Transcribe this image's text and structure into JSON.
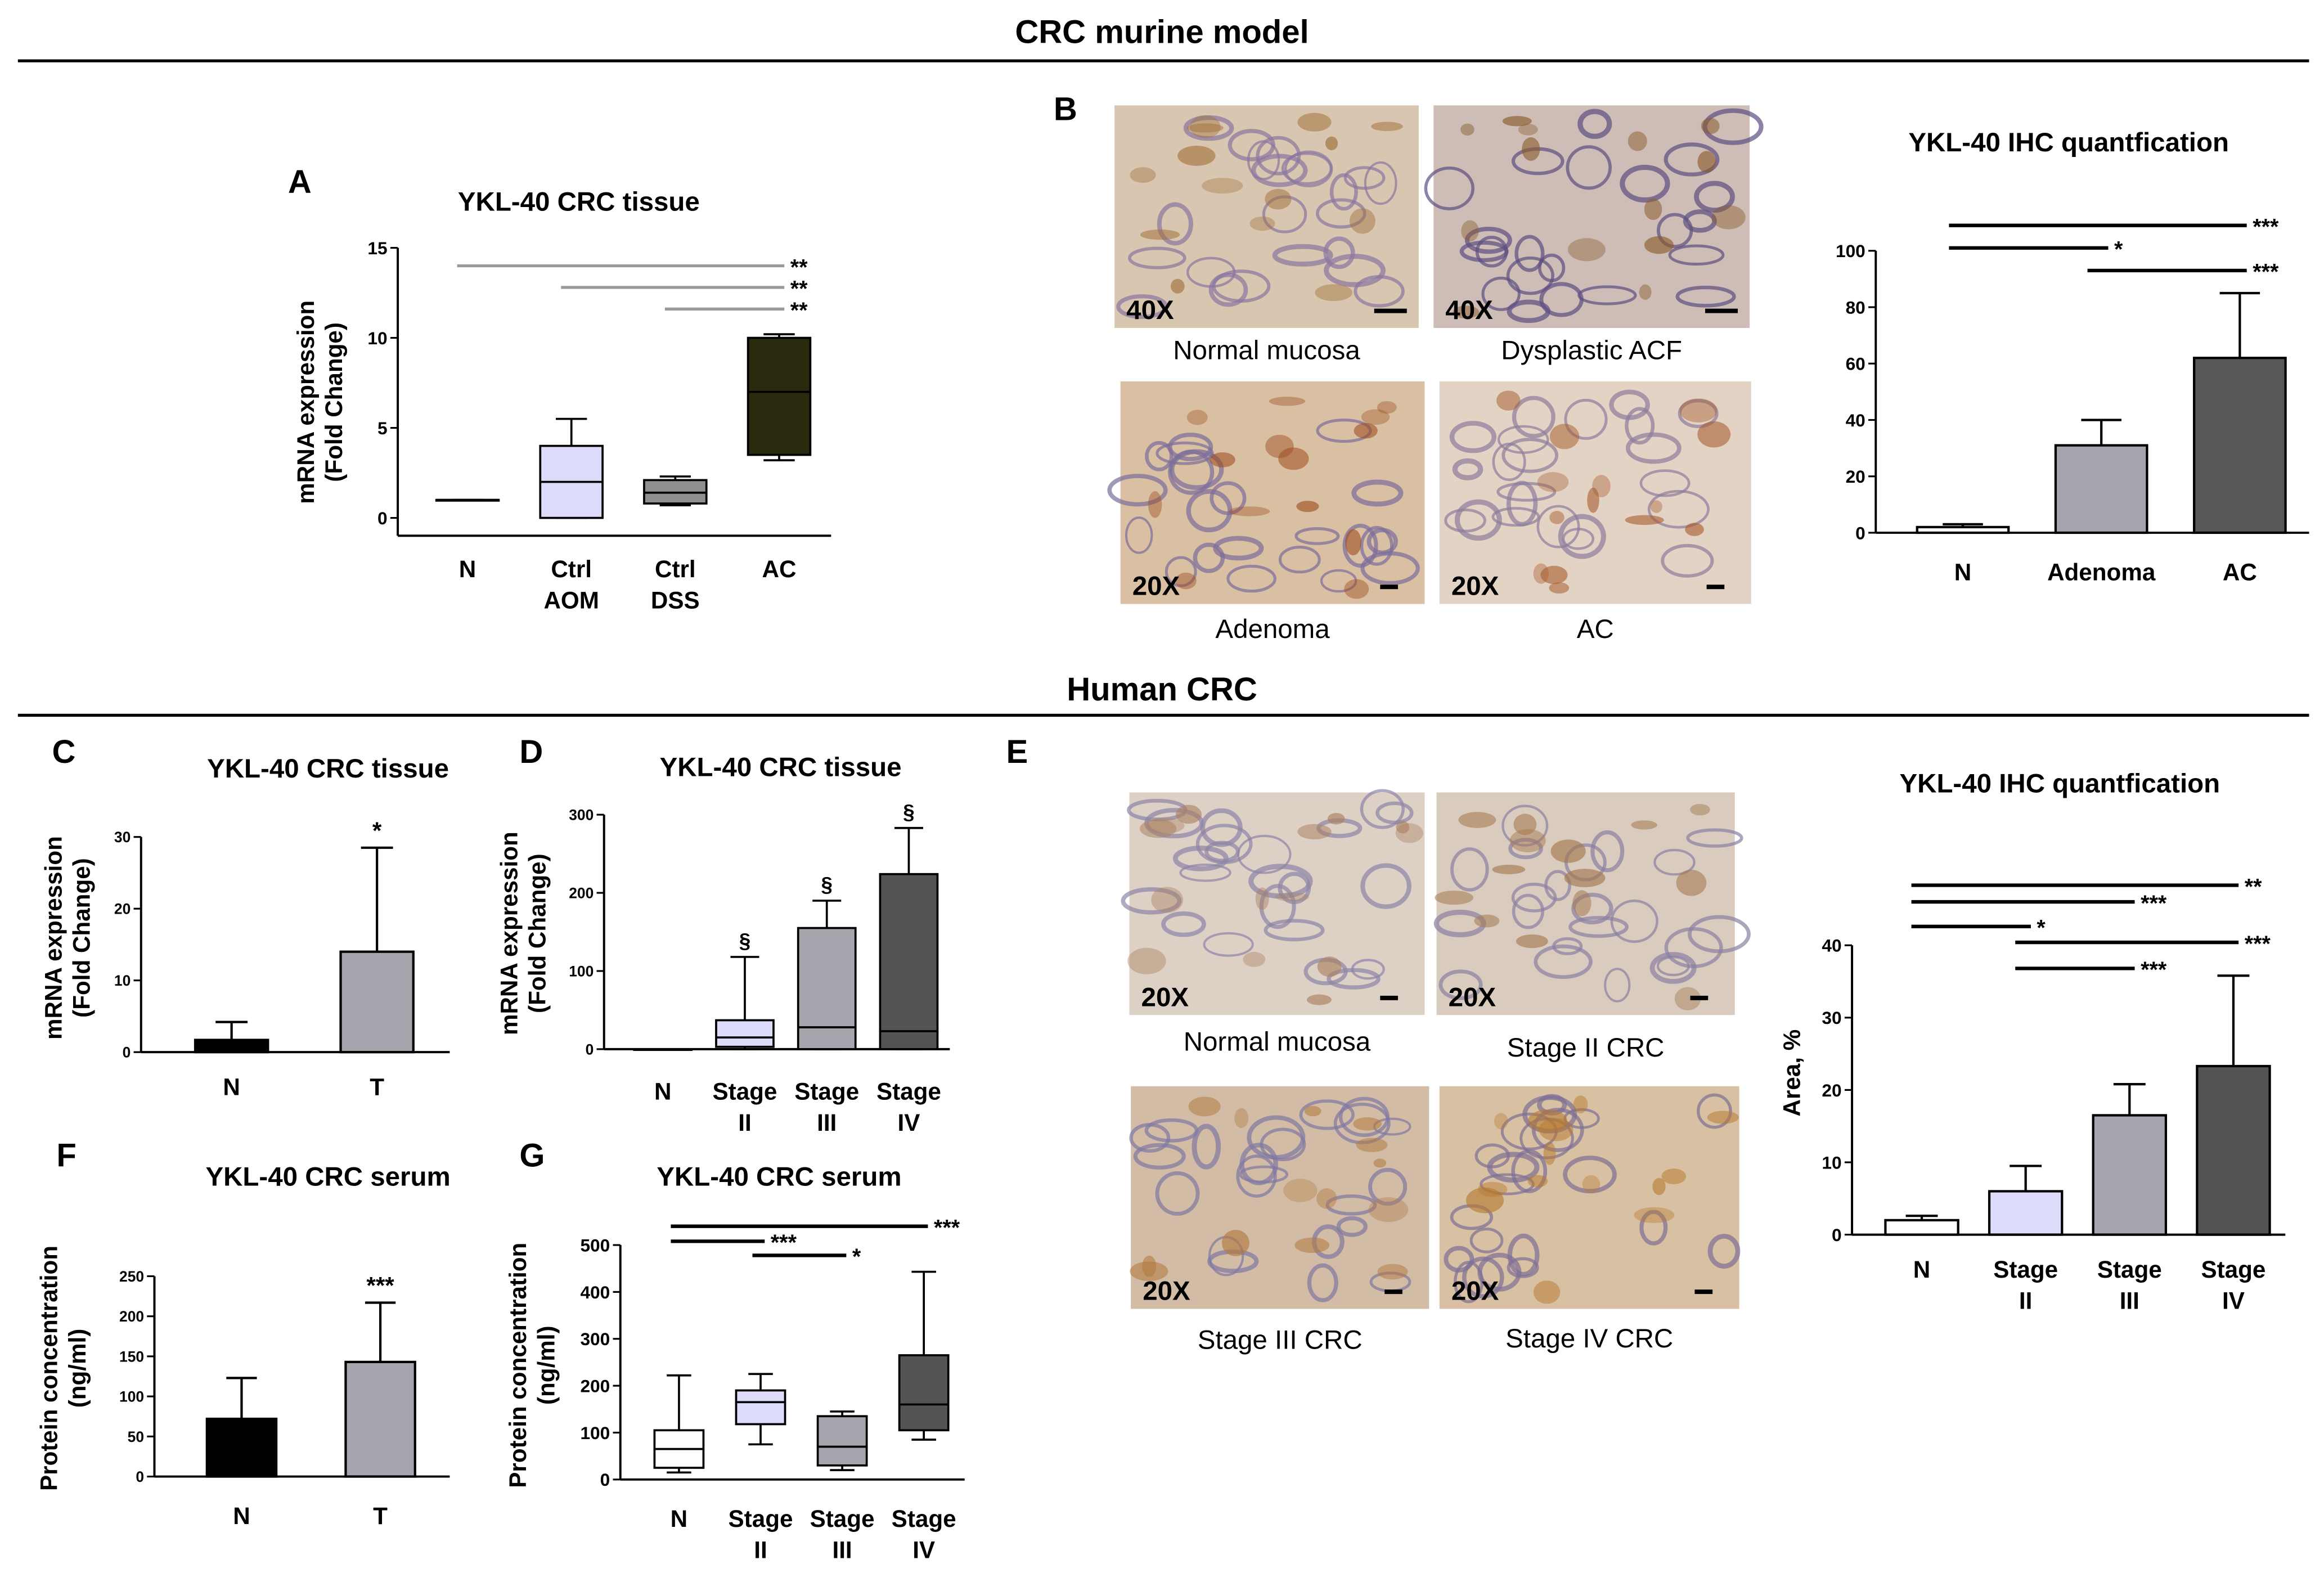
{
  "colors": {
    "N": "#ffffff",
    "ctrl_aom": "#dcdcfa",
    "ctrl_dss": "#8f8f8f",
    "ac_mouse": "#2a2a0e",
    "adenoma": "#a5a5ad",
    "ac_grey": "#575757",
    "stage2": "#dcdcfa",
    "stage3": "#a5a5ad",
    "stage4": "#545454",
    "tumor": "#a5a5ad",
    "black": "#000000"
  },
  "headers": {
    "murine": "CRC murine model",
    "human": "Human CRC"
  },
  "panel_letters": {
    "A": "A",
    "B": "B",
    "C": "C",
    "D": "D",
    "E": "E",
    "F": "F",
    "G": "G"
  },
  "micrographs": {
    "B": [
      {
        "magnification": "40X",
        "caption": "Normal mucosa",
        "tone": "#d8c6b0",
        "stain": "#8a76a0",
        "brown": "#a0703a"
      },
      {
        "magnification": "40X",
        "caption": "Dysplastic ACF",
        "tone": "#cdbdb6",
        "stain": "#5d4f80",
        "brown": "#8a5a2a"
      },
      {
        "magnification": "20X",
        "caption": "Adenoma",
        "tone": "#d9c0a3",
        "stain": "#7a6c9a",
        "brown": "#9c4a1c"
      },
      {
        "magnification": "20X",
        "caption": "AC",
        "tone": "#e3d3c4",
        "stain": "#8c7c9c",
        "brown": "#a65c2e"
      }
    ],
    "E": [
      {
        "magnification": "20X",
        "caption": "Normal mucosa",
        "tone": "#ddd1c6",
        "stain": "#8d85a7",
        "brown": "#a98060"
      },
      {
        "magnification": "20X",
        "caption": "Stage II CRC",
        "tone": "#d9cbbd",
        "stain": "#8a7fa3",
        "brown": "#a47a50"
      },
      {
        "magnification": "20X",
        "caption": "Stage III CRC",
        "tone": "#d2bca6",
        "stain": "#7f77a3",
        "brown": "#b27a40"
      },
      {
        "magnification": "20X",
        "caption": "Stage IV CRC",
        "tone": "#d8c0a2",
        "stain": "#7d6f96",
        "brown": "#b6782e"
      }
    ]
  },
  "chart_data": [
    {
      "id": "A",
      "type": "box",
      "title": "YKL-40 CRC tissue",
      "ylabel": [
        "mRNA expression",
        "(Fold Change)"
      ],
      "ylim": [
        0,
        15
      ],
      "yticks": [
        0,
        5,
        10,
        15
      ],
      "categories": [
        [
          "N"
        ],
        [
          "Ctrl",
          "AOM"
        ],
        [
          "Ctrl",
          "DSS"
        ],
        [
          "AC"
        ]
      ],
      "boxes": [
        {
          "min": 1.0,
          "q1": 1.0,
          "median": 1.0,
          "q3": 1.0,
          "max": 1.0,
          "fill": "#ffffff"
        },
        {
          "min": 0.0,
          "q1": 0.0,
          "median": 2.0,
          "q3": 4.0,
          "max": 5.5,
          "fill": "#dcdcfa"
        },
        {
          "min": 0.7,
          "q1": 0.8,
          "median": 1.4,
          "q3": 2.1,
          "max": 2.3,
          "fill": "#8f8f8f"
        },
        {
          "min": 3.2,
          "q1": 3.5,
          "median": 7.0,
          "q3": 10.0,
          "max": 10.2,
          "fill": "#2a2a0e"
        }
      ],
      "brackets": [
        {
          "from": 0,
          "to": 3,
          "y": 14.0,
          "label": "**"
        },
        {
          "from": 1,
          "to": 3,
          "y": 12.8,
          "label": "**"
        },
        {
          "from": 2,
          "to": 3,
          "y": 11.6,
          "label": "**"
        }
      ]
    },
    {
      "id": "B",
      "type": "bar",
      "title": "YKL-40 IHC quantfication",
      "ylabel": [],
      "ylim": [
        0,
        100
      ],
      "yticks": [
        0,
        20,
        40,
        60,
        80,
        100
      ],
      "categories": [
        [
          "N"
        ],
        [
          "Adenoma"
        ],
        [
          "AC"
        ]
      ],
      "values": [
        2,
        31,
        62
      ],
      "errors": [
        1,
        9,
        23
      ],
      "fills": [
        "#ffffff",
        "#a5a5ad",
        "#575757"
      ],
      "brackets": [
        {
          "from": 0,
          "to": 2,
          "y": 109,
          "label": "***"
        },
        {
          "from": 0,
          "to": 1,
          "y": 101,
          "label": "*"
        },
        {
          "from": 1,
          "to": 2,
          "y": 93,
          "label": "***"
        }
      ]
    },
    {
      "id": "C",
      "type": "bar",
      "title": "YKL-40 CRC tissue",
      "ylabel": [
        "mRNA expression",
        "(Fold Change)"
      ],
      "ylim": [
        0,
        30
      ],
      "yticks": [
        0,
        10,
        20,
        30
      ],
      "categories": [
        [
          "N"
        ],
        [
          "T"
        ]
      ],
      "values": [
        1.7,
        14
      ],
      "errors": [
        2.5,
        14.5
      ],
      "fills": [
        "#000000",
        "#a5a5ad"
      ],
      "marks": [
        {
          "index": 1,
          "label": "*"
        }
      ]
    },
    {
      "id": "D",
      "type": "box",
      "title": "YKL-40 CRC tissue",
      "ylabel": [
        "mRNA expression",
        "(Fold Change)"
      ],
      "ylim": [
        0,
        300
      ],
      "yticks": [
        0,
        100,
        200,
        300
      ],
      "categories": [
        [
          "N"
        ],
        [
          "Stage",
          "II"
        ],
        [
          "Stage",
          "III"
        ],
        [
          "Stage",
          "IV"
        ]
      ],
      "boxes": [
        {
          "min": 0,
          "q1": 0,
          "median": 0,
          "q3": 0,
          "max": 0,
          "fill": "#ffffff"
        },
        {
          "min": 0,
          "q1": 3,
          "median": 15,
          "q3": 37,
          "max": 118,
          "fill": "#dcdcfa"
        },
        {
          "min": 0,
          "q1": 0,
          "median": 28,
          "q3": 155,
          "max": 190,
          "fill": "#a5a5ad"
        },
        {
          "min": 0,
          "q1": 0,
          "median": 23,
          "q3": 224,
          "max": 283,
          "fill": "#545454"
        }
      ],
      "marks": [
        {
          "index": 1,
          "label": "§"
        },
        {
          "index": 2,
          "label": "§"
        },
        {
          "index": 3,
          "label": "§"
        }
      ]
    },
    {
      "id": "E",
      "type": "bar",
      "title": "YKL-40 IHC quantfication",
      "ylabel": [
        "Area, %"
      ],
      "ylim": [
        0,
        40
      ],
      "yticks": [
        0,
        10,
        20,
        30,
        40
      ],
      "categories": [
        [
          "N"
        ],
        [
          "Stage",
          "II"
        ],
        [
          "Stage",
          "III"
        ],
        [
          "Stage",
          "IV"
        ]
      ],
      "values": [
        2,
        6,
        16.5,
        23.3
      ],
      "errors": [
        0.6,
        3.5,
        4.3,
        12.5
      ],
      "fills": [
        "#ffffff",
        "#dcdcfa",
        "#a5a5ad",
        "#545454"
      ],
      "brackets": [
        {
          "from": 0,
          "to": 3,
          "y": 48.3,
          "label": "**"
        },
        {
          "from": 0,
          "to": 2,
          "y": 46.0,
          "label": "***"
        },
        {
          "from": 0,
          "to": 1,
          "y": 42.6,
          "label": "*"
        },
        {
          "from": 1,
          "to": 3,
          "y": 40.4,
          "label": "***"
        },
        {
          "from": 1,
          "to": 2,
          "y": 36.8,
          "label": "***"
        }
      ]
    },
    {
      "id": "F",
      "type": "bar",
      "title": "YKL-40 CRC serum",
      "ylabel": [
        "Protein concentration",
        "(ng/ml)"
      ],
      "ylim": [
        0,
        250
      ],
      "yticks": [
        0,
        50,
        100,
        150,
        200,
        250
      ],
      "categories": [
        [
          "N"
        ],
        [
          "T"
        ]
      ],
      "values": [
        72,
        143
      ],
      "errors": [
        51,
        74
      ],
      "fills": [
        "#000000",
        "#a5a5ad"
      ],
      "marks": [
        {
          "index": 1,
          "label": "***"
        }
      ]
    },
    {
      "id": "G",
      "type": "box",
      "title": "YKL-40 CRC serum",
      "ylabel": [
        "Protein concentration",
        "(ng/ml)"
      ],
      "ylim": [
        0,
        500
      ],
      "yticks": [
        0,
        100,
        200,
        300,
        400,
        500
      ],
      "categories": [
        [
          "N"
        ],
        [
          "Stage",
          "II"
        ],
        [
          "Stage",
          "III"
        ],
        [
          "Stage",
          "IV"
        ]
      ],
      "boxes": [
        {
          "min": 15,
          "q1": 25,
          "median": 65,
          "q3": 105,
          "max": 222,
          "fill": "#ffffff"
        },
        {
          "min": 75,
          "q1": 118,
          "median": 165,
          "q3": 190,
          "max": 225,
          "fill": "#dcdcfa"
        },
        {
          "min": 20,
          "q1": 30,
          "median": 70,
          "q3": 135,
          "max": 145,
          "fill": "#a5a5ad"
        },
        {
          "min": 85,
          "q1": 105,
          "median": 160,
          "q3": 265,
          "max": 443,
          "fill": "#545454"
        }
      ],
      "brackets": [
        {
          "from": 0,
          "to": 3,
          "y": 540,
          "label": "***"
        },
        {
          "from": 0,
          "to": 1,
          "y": 508,
          "label": "***"
        },
        {
          "from": 1,
          "to": 2,
          "y": 478,
          "label": "*"
        }
      ]
    }
  ]
}
